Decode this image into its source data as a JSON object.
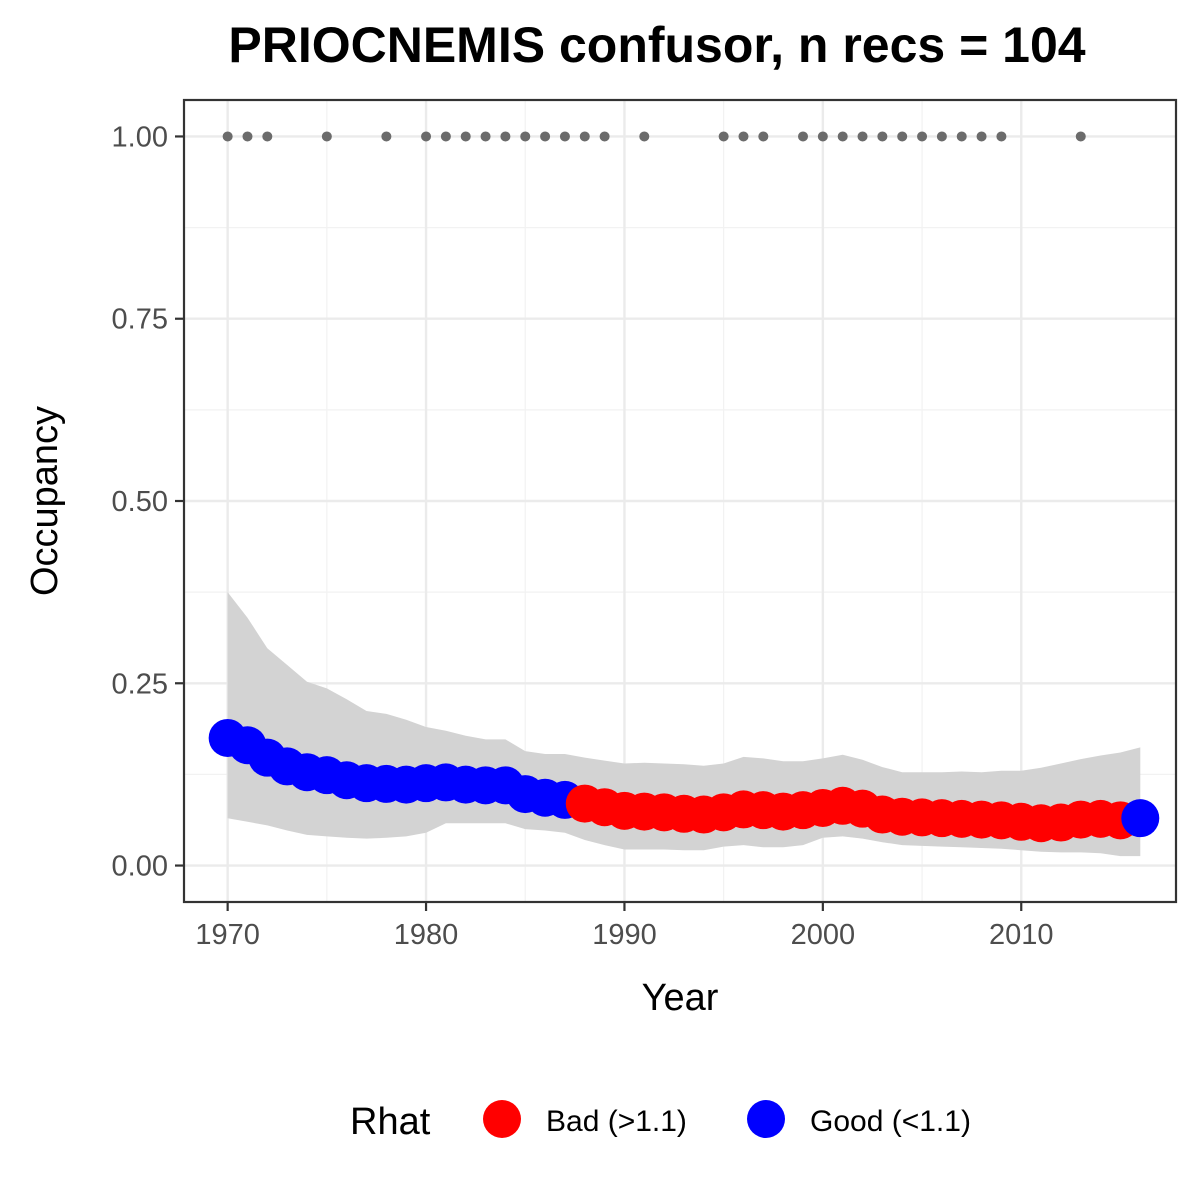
{
  "chart_data": {
    "type": "scatter",
    "title": "PRIOCNEMIS confusor, n recs = 104",
    "xlabel": "Year",
    "ylabel": "Occupancy",
    "xlim": [
      1967.8,
      2017.8
    ],
    "ylim": [
      -0.05,
      1.05
    ],
    "x_ticks": [
      1970,
      1980,
      1990,
      2000,
      2010
    ],
    "x_tick_labels": [
      "1970",
      "1980",
      "1990",
      "2000",
      "2010"
    ],
    "y_ticks": [
      0,
      0.25,
      0.5,
      0.75,
      1
    ],
    "y_tick_labels": [
      "0.00",
      "0.25",
      "0.50",
      "0.75",
      "1.00"
    ],
    "grid": true,
    "legend": {
      "title": "Rhat",
      "position": "bottom",
      "entries": [
        {
          "label": "Bad (>1.1)",
          "color": "#ff0000"
        },
        {
          "label": "Good (<1.1)",
          "color": "#0000ff"
        }
      ]
    },
    "colors": {
      "bad": "#ff0000",
      "good": "#0000ff",
      "records": "#6b6b6b",
      "ribbon": "#d3d3d3"
    },
    "occupancy": {
      "years": [
        1970,
        1971,
        1972,
        1973,
        1974,
        1975,
        1976,
        1977,
        1978,
        1979,
        1980,
        1981,
        1982,
        1983,
        1984,
        1985,
        1986,
        1987,
        1988,
        1989,
        1990,
        1991,
        1992,
        1993,
        1994,
        1995,
        1996,
        1997,
        1998,
        1999,
        2000,
        2001,
        2002,
        2003,
        2004,
        2005,
        2006,
        2007,
        2008,
        2009,
        2010,
        2011,
        2012,
        2013,
        2014,
        2015,
        2016
      ],
      "mean": [
        0.175,
        0.165,
        0.148,
        0.136,
        0.128,
        0.124,
        0.117,
        0.113,
        0.112,
        0.111,
        0.113,
        0.114,
        0.111,
        0.11,
        0.11,
        0.098,
        0.093,
        0.09,
        0.085,
        0.08,
        0.075,
        0.074,
        0.073,
        0.071,
        0.07,
        0.073,
        0.077,
        0.076,
        0.074,
        0.076,
        0.079,
        0.082,
        0.078,
        0.07,
        0.067,
        0.066,
        0.065,
        0.064,
        0.063,
        0.062,
        0.06,
        0.058,
        0.059,
        0.063,
        0.064,
        0.062,
        0.065
      ],
      "rhat": [
        "good",
        "good",
        "good",
        "good",
        "good",
        "good",
        "good",
        "good",
        "good",
        "good",
        "good",
        "good",
        "good",
        "good",
        "good",
        "good",
        "good",
        "good",
        "bad",
        "bad",
        "bad",
        "bad",
        "bad",
        "bad",
        "bad",
        "bad",
        "bad",
        "bad",
        "bad",
        "bad",
        "bad",
        "bad",
        "bad",
        "bad",
        "bad",
        "bad",
        "bad",
        "bad",
        "bad",
        "bad",
        "bad",
        "bad",
        "bad",
        "bad",
        "bad",
        "bad",
        "good"
      ],
      "lower": [
        0.065,
        0.06,
        0.055,
        0.048,
        0.042,
        0.04,
        0.038,
        0.037,
        0.038,
        0.04,
        0.045,
        0.058,
        0.058,
        0.058,
        0.058,
        0.05,
        0.048,
        0.045,
        0.035,
        0.028,
        0.022,
        0.022,
        0.022,
        0.021,
        0.021,
        0.026,
        0.028,
        0.025,
        0.025,
        0.028,
        0.038,
        0.04,
        0.037,
        0.032,
        0.028,
        0.027,
        0.026,
        0.025,
        0.024,
        0.023,
        0.021,
        0.019,
        0.018,
        0.018,
        0.017,
        0.013,
        0.013
      ],
      "upper": [
        0.375,
        0.34,
        0.298,
        0.275,
        0.252,
        0.243,
        0.228,
        0.212,
        0.208,
        0.2,
        0.19,
        0.185,
        0.178,
        0.173,
        0.173,
        0.157,
        0.153,
        0.153,
        0.148,
        0.144,
        0.14,
        0.141,
        0.14,
        0.139,
        0.137,
        0.14,
        0.149,
        0.147,
        0.143,
        0.143,
        0.147,
        0.152,
        0.145,
        0.135,
        0.128,
        0.128,
        0.128,
        0.129,
        0.128,
        0.13,
        0.13,
        0.134,
        0.14,
        0.146,
        0.151,
        0.155,
        0.162
      ]
    },
    "record_years": [
      1970,
      1971,
      1972,
      1975,
      1978,
      1980,
      1981,
      1982,
      1983,
      1984,
      1985,
      1986,
      1987,
      1988,
      1989,
      1991,
      1995,
      1996,
      1997,
      1999,
      2000,
      2001,
      2002,
      2003,
      2004,
      2005,
      2006,
      2007,
      2008,
      2009,
      2013
    ],
    "record_value": 1
  }
}
